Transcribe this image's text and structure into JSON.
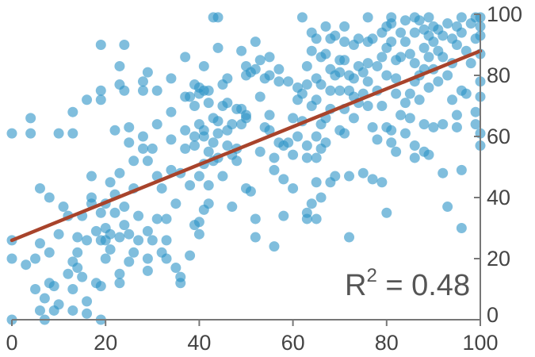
{
  "chart_data": {
    "type": "scatter",
    "title": "",
    "xlabel": "",
    "ylabel": "",
    "xlim": [
      0,
      100
    ],
    "ylim": [
      0,
      100
    ],
    "x_ticks": [
      "0",
      "20",
      "40",
      "60",
      "80",
      "100"
    ],
    "y_ticks": [
      "0",
      "20",
      "40",
      "60",
      "80",
      "100"
    ],
    "y_axis_side": "right",
    "grid": false,
    "colors": {
      "points": "#2b93c6",
      "fit_line": "#a8432b",
      "axis": "#777777"
    },
    "annotation": {
      "base": "R",
      "sup": "2",
      "rest": " = 0.48"
    },
    "fit_line": {
      "x": [
        0,
        100
      ],
      "y": [
        26,
        88
      ]
    },
    "points": [
      {
        "x": 0,
        "y": 61
      },
      {
        "x": 0,
        "y": 26
      },
      {
        "x": 0,
        "y": 20
      },
      {
        "x": 0,
        "y": 0
      },
      {
        "x": 3,
        "y": 18
      },
      {
        "x": 4,
        "y": 66
      },
      {
        "x": 4,
        "y": 61
      },
      {
        "x": 5,
        "y": 20
      },
      {
        "x": 5,
        "y": 10
      },
      {
        "x": 6,
        "y": 43
      },
      {
        "x": 6,
        "y": 25
      },
      {
        "x": 6,
        "y": 3
      },
      {
        "x": 7,
        "y": 7
      },
      {
        "x": 7,
        "y": 0
      },
      {
        "x": 8,
        "y": 40
      },
      {
        "x": 8,
        "y": 22
      },
      {
        "x": 8,
        "y": 12
      },
      {
        "x": 9,
        "y": 3
      },
      {
        "x": 9,
        "y": 11
      },
      {
        "x": 10,
        "y": 61
      },
      {
        "x": 10,
        "y": 28
      },
      {
        "x": 10,
        "y": 5
      },
      {
        "x": 11,
        "y": 37
      },
      {
        "x": 12,
        "y": 34
      },
      {
        "x": 13,
        "y": 19
      },
      {
        "x": 13,
        "y": 3
      },
      {
        "x": 12,
        "y": 15
      },
      {
        "x": 13,
        "y": 68
      },
      {
        "x": 13,
        "y": 61
      },
      {
        "x": 13,
        "y": 10
      },
      {
        "x": 14,
        "y": 22
      },
      {
        "x": 14,
        "y": 17
      },
      {
        "x": 14,
        "y": 27
      },
      {
        "x": 15,
        "y": 34
      },
      {
        "x": 15,
        "y": 14
      },
      {
        "x": 16,
        "y": 72
      },
      {
        "x": 16,
        "y": 26
      },
      {
        "x": 16,
        "y": 6
      },
      {
        "x": 16,
        "y": 2
      },
      {
        "x": 17,
        "y": 47
      },
      {
        "x": 17,
        "y": 40
      },
      {
        "x": 17,
        "y": 38
      },
      {
        "x": 18,
        "y": 12
      },
      {
        "x": 18,
        "y": 29
      },
      {
        "x": 19,
        "y": 0
      },
      {
        "x": 19,
        "y": 35
      },
      {
        "x": 19,
        "y": 26
      },
      {
        "x": 19,
        "y": 11
      },
      {
        "x": 19,
        "y": 90
      },
      {
        "x": 19,
        "y": 75
      },
      {
        "x": 19,
        "y": 72
      },
      {
        "x": 20,
        "y": 38
      },
      {
        "x": 20,
        "y": 30
      },
      {
        "x": 20,
        "y": 26
      },
      {
        "x": 20,
        "y": 20
      },
      {
        "x": 21,
        "y": 45
      },
      {
        "x": 21,
        "y": 28
      },
      {
        "x": 21,
        "y": 23
      },
      {
        "x": 22,
        "y": 62
      },
      {
        "x": 22,
        "y": 41
      },
      {
        "x": 22,
        "y": 35
      },
      {
        "x": 23,
        "y": 48
      },
      {
        "x": 23,
        "y": 27
      },
      {
        "x": 23,
        "y": 15
      },
      {
        "x": 23,
        "y": 12
      },
      {
        "x": 23,
        "y": 83
      },
      {
        "x": 23,
        "y": 77
      },
      {
        "x": 24,
        "y": 90
      },
      {
        "x": 24,
        "y": 75
      },
      {
        "x": 24,
        "y": 37
      },
      {
        "x": 24,
        "y": 31
      },
      {
        "x": 25,
        "y": 58
      },
      {
        "x": 25,
        "y": 63
      },
      {
        "x": 25,
        "y": 28
      },
      {
        "x": 25,
        "y": 19
      },
      {
        "x": 26,
        "y": 52
      },
      {
        "x": 26,
        "y": 43
      },
      {
        "x": 26,
        "y": 22
      },
      {
        "x": 27,
        "y": 34
      },
      {
        "x": 27,
        "y": 26
      },
      {
        "x": 28,
        "y": 75
      },
      {
        "x": 28,
        "y": 78
      },
      {
        "x": 28,
        "y": 56
      },
      {
        "x": 29,
        "y": 81
      },
      {
        "x": 28,
        "y": 60
      },
      {
        "x": 29,
        "y": 52
      },
      {
        "x": 29,
        "y": 29
      },
      {
        "x": 29,
        "y": 20
      },
      {
        "x": 29,
        "y": 16
      },
      {
        "x": 30,
        "y": 56
      },
      {
        "x": 30,
        "y": 26
      },
      {
        "x": 31,
        "y": 75
      },
      {
        "x": 31,
        "y": 64
      },
      {
        "x": 31,
        "y": 47
      },
      {
        "x": 31,
        "y": 33
      },
      {
        "x": 32,
        "y": 43
      },
      {
        "x": 32,
        "y": 22
      },
      {
        "x": 33,
        "y": 33
      },
      {
        "x": 33,
        "y": 26
      },
      {
        "x": 33,
        "y": 20
      },
      {
        "x": 34,
        "y": 79
      },
      {
        "x": 34,
        "y": 68
      },
      {
        "x": 34,
        "y": 59
      },
      {
        "x": 34,
        "y": 49
      },
      {
        "x": 35,
        "y": 38
      },
      {
        "x": 35,
        "y": 17
      },
      {
        "x": 36,
        "y": 12
      },
      {
        "x": 36,
        "y": 14
      },
      {
        "x": 36,
        "y": 48
      },
      {
        "x": 37,
        "y": 86
      },
      {
        "x": 37,
        "y": 73
      },
      {
        "x": 37,
        "y": 62
      },
      {
        "x": 37,
        "y": 56
      },
      {
        "x": 38,
        "y": 44
      },
      {
        "x": 38,
        "y": 21
      },
      {
        "x": 38,
        "y": 73
      },
      {
        "x": 39,
        "y": 77
      },
      {
        "x": 39,
        "y": 70
      },
      {
        "x": 39,
        "y": 60
      },
      {
        "x": 39,
        "y": 57
      },
      {
        "x": 39,
        "y": 31
      },
      {
        "x": 40,
        "y": 76
      },
      {
        "x": 40,
        "y": 74
      },
      {
        "x": 40,
        "y": 64
      },
      {
        "x": 40,
        "y": 47
      },
      {
        "x": 40,
        "y": 32
      },
      {
        "x": 40,
        "y": 28
      },
      {
        "x": 41,
        "y": 83
      },
      {
        "x": 41,
        "y": 75
      },
      {
        "x": 41,
        "y": 62
      },
      {
        "x": 41,
        "y": 60
      },
      {
        "x": 41,
        "y": 51
      },
      {
        "x": 41,
        "y": 36
      },
      {
        "x": 42,
        "y": 75
      },
      {
        "x": 42,
        "y": 71
      },
      {
        "x": 42,
        "y": 55
      },
      {
        "x": 42,
        "y": 44
      },
      {
        "x": 42,
        "y": 38
      },
      {
        "x": 43,
        "y": 99
      },
      {
        "x": 43,
        "y": 66
      },
      {
        "x": 43,
        "y": 58
      },
      {
        "x": 43,
        "y": 52
      },
      {
        "x": 44,
        "y": 99
      },
      {
        "x": 44,
        "y": 89
      },
      {
        "x": 44,
        "y": 65
      },
      {
        "x": 44,
        "y": 61
      },
      {
        "x": 44,
        "y": 53
      },
      {
        "x": 45,
        "y": 77
      },
      {
        "x": 45,
        "y": 70
      },
      {
        "x": 45,
        "y": 47
      },
      {
        "x": 46,
        "y": 79
      },
      {
        "x": 46,
        "y": 71
      },
      {
        "x": 46,
        "y": 62
      },
      {
        "x": 46,
        "y": 57
      },
      {
        "x": 47,
        "y": 64
      },
      {
        "x": 47,
        "y": 54
      },
      {
        "x": 47,
        "y": 37
      },
      {
        "x": 48,
        "y": 69
      },
      {
        "x": 48,
        "y": 56
      },
      {
        "x": 48,
        "y": 52
      },
      {
        "x": 49,
        "y": 88
      },
      {
        "x": 49,
        "y": 69
      },
      {
        "x": 49,
        "y": 64
      },
      {
        "x": 50,
        "y": 83
      },
      {
        "x": 50,
        "y": 80
      },
      {
        "x": 50,
        "y": 66
      },
      {
        "x": 50,
        "y": 43
      },
      {
        "x": 50,
        "y": 67
      },
      {
        "x": 51,
        "y": 81
      },
      {
        "x": 51,
        "y": 42
      },
      {
        "x": 52,
        "y": 91
      },
      {
        "x": 52,
        "y": 82
      },
      {
        "x": 52,
        "y": 33
      },
      {
        "x": 52,
        "y": 27
      },
      {
        "x": 53,
        "y": 85
      },
      {
        "x": 53,
        "y": 73
      },
      {
        "x": 53,
        "y": 55
      },
      {
        "x": 54,
        "y": 79
      },
      {
        "x": 54,
        "y": 63
      },
      {
        "x": 55,
        "y": 86
      },
      {
        "x": 55,
        "y": 80
      },
      {
        "x": 55,
        "y": 67
      },
      {
        "x": 55,
        "y": 62
      },
      {
        "x": 56,
        "y": 53
      },
      {
        "x": 56,
        "y": 49
      },
      {
        "x": 56,
        "y": 24
      },
      {
        "x": 57,
        "y": 82
      },
      {
        "x": 57,
        "y": 78
      },
      {
        "x": 57,
        "y": 58
      },
      {
        "x": 58,
        "y": 57
      },
      {
        "x": 58,
        "y": 46
      },
      {
        "x": 58,
        "y": 34
      },
      {
        "x": 59,
        "y": 78
      },
      {
        "x": 59,
        "y": 58
      },
      {
        "x": 60,
        "y": 66
      },
      {
        "x": 60,
        "y": 54
      },
      {
        "x": 60,
        "y": 43
      },
      {
        "x": 61,
        "y": 76
      },
      {
        "x": 61,
        "y": 72
      },
      {
        "x": 61,
        "y": 60
      },
      {
        "x": 62,
        "y": 99
      },
      {
        "x": 62,
        "y": 74
      },
      {
        "x": 62,
        "y": 65
      },
      {
        "x": 63,
        "y": 83
      },
      {
        "x": 63,
        "y": 77
      },
      {
        "x": 63,
        "y": 57
      },
      {
        "x": 63,
        "y": 53
      },
      {
        "x": 63,
        "y": 35
      },
      {
        "x": 63,
        "y": 33
      },
      {
        "x": 64,
        "y": 94
      },
      {
        "x": 64,
        "y": 88
      },
      {
        "x": 64,
        "y": 70
      },
      {
        "x": 64,
        "y": 38
      },
      {
        "x": 65,
        "y": 92
      },
      {
        "x": 65,
        "y": 79
      },
      {
        "x": 65,
        "y": 72
      },
      {
        "x": 65,
        "y": 60
      },
      {
        "x": 65,
        "y": 53
      },
      {
        "x": 65,
        "y": 45
      },
      {
        "x": 65,
        "y": 33
      },
      {
        "x": 66,
        "y": 86
      },
      {
        "x": 66,
        "y": 77
      },
      {
        "x": 66,
        "y": 64
      },
      {
        "x": 66,
        "y": 56
      },
      {
        "x": 66,
        "y": 40
      },
      {
        "x": 67,
        "y": 96
      },
      {
        "x": 67,
        "y": 87
      },
      {
        "x": 67,
        "y": 66
      },
      {
        "x": 67,
        "y": 58
      },
      {
        "x": 68,
        "y": 92
      },
      {
        "x": 68,
        "y": 82
      },
      {
        "x": 68,
        "y": 75
      },
      {
        "x": 68,
        "y": 69
      },
      {
        "x": 68,
        "y": 45
      },
      {
        "x": 69,
        "y": 93
      },
      {
        "x": 69,
        "y": 80
      },
      {
        "x": 69,
        "y": 47
      },
      {
        "x": 70,
        "y": 85
      },
      {
        "x": 70,
        "y": 81
      },
      {
        "x": 70,
        "y": 75
      },
      {
        "x": 70,
        "y": 62
      },
      {
        "x": 71,
        "y": 96
      },
      {
        "x": 71,
        "y": 91
      },
      {
        "x": 71,
        "y": 85
      },
      {
        "x": 71,
        "y": 69
      },
      {
        "x": 71,
        "y": 61
      },
      {
        "x": 72,
        "y": 80
      },
      {
        "x": 72,
        "y": 75
      },
      {
        "x": 72,
        "y": 47
      },
      {
        "x": 72,
        "y": 27
      },
      {
        "x": 73,
        "y": 90
      },
      {
        "x": 73,
        "y": 79
      },
      {
        "x": 73,
        "y": 73
      },
      {
        "x": 73,
        "y": 66
      },
      {
        "x": 74,
        "y": 92
      },
      {
        "x": 74,
        "y": 83
      },
      {
        "x": 74,
        "y": 71
      },
      {
        "x": 75,
        "y": 81
      },
      {
        "x": 75,
        "y": 74
      },
      {
        "x": 75,
        "y": 48
      },
      {
        "x": 76,
        "y": 99
      },
      {
        "x": 76,
        "y": 91
      },
      {
        "x": 76,
        "y": 84
      },
      {
        "x": 76,
        "y": 78
      },
      {
        "x": 76,
        "y": 70
      },
      {
        "x": 77,
        "y": 92
      },
      {
        "x": 77,
        "y": 63
      },
      {
        "x": 77,
        "y": 46
      },
      {
        "x": 78,
        "y": 83
      },
      {
        "x": 78,
        "y": 75
      },
      {
        "x": 78,
        "y": 59
      },
      {
        "x": 79,
        "y": 94
      },
      {
        "x": 79,
        "y": 86
      },
      {
        "x": 79,
        "y": 70
      },
      {
        "x": 79,
        "y": 45
      },
      {
        "x": 80,
        "y": 96
      },
      {
        "x": 80,
        "y": 89
      },
      {
        "x": 80,
        "y": 80
      },
      {
        "x": 80,
        "y": 63
      },
      {
        "x": 80,
        "y": 35
      },
      {
        "x": 81,
        "y": 99
      },
      {
        "x": 81,
        "y": 97
      },
      {
        "x": 81,
        "y": 91
      },
      {
        "x": 81,
        "y": 62
      },
      {
        "x": 81,
        "y": 58
      },
      {
        "x": 82,
        "y": 85
      },
      {
        "x": 82,
        "y": 79
      },
      {
        "x": 82,
        "y": 74
      },
      {
        "x": 82,
        "y": 55
      },
      {
        "x": 83,
        "y": 94
      },
      {
        "x": 83,
        "y": 86
      },
      {
        "x": 83,
        "y": 67
      },
      {
        "x": 84,
        "y": 98
      },
      {
        "x": 84,
        "y": 91
      },
      {
        "x": 84,
        "y": 71
      },
      {
        "x": 84,
        "y": 61
      },
      {
        "x": 85,
        "y": 87
      },
      {
        "x": 85,
        "y": 74
      },
      {
        "x": 85,
        "y": 66
      },
      {
        "x": 86,
        "y": 99
      },
      {
        "x": 86,
        "y": 94
      },
      {
        "x": 86,
        "y": 84
      },
      {
        "x": 86,
        "y": 78
      },
      {
        "x": 86,
        "y": 57
      },
      {
        "x": 86,
        "y": 53
      },
      {
        "x": 87,
        "y": 98
      },
      {
        "x": 87,
        "y": 80
      },
      {
        "x": 87,
        "y": 72
      },
      {
        "x": 88,
        "y": 95
      },
      {
        "x": 88,
        "y": 89
      },
      {
        "x": 88,
        "y": 82
      },
      {
        "x": 88,
        "y": 64
      },
      {
        "x": 88,
        "y": 55
      },
      {
        "x": 89,
        "y": 99
      },
      {
        "x": 89,
        "y": 93
      },
      {
        "x": 89,
        "y": 86
      },
      {
        "x": 89,
        "y": 76
      },
      {
        "x": 89,
        "y": 54
      },
      {
        "x": 90,
        "y": 96
      },
      {
        "x": 90,
        "y": 91
      },
      {
        "x": 90,
        "y": 82
      },
      {
        "x": 90,
        "y": 63
      },
      {
        "x": 91,
        "y": 95
      },
      {
        "x": 91,
        "y": 88
      },
      {
        "x": 91,
        "y": 78
      },
      {
        "x": 92,
        "y": 93
      },
      {
        "x": 92,
        "y": 86
      },
      {
        "x": 92,
        "y": 64
      },
      {
        "x": 92,
        "y": 48
      },
      {
        "x": 93,
        "y": 97
      },
      {
        "x": 93,
        "y": 80
      },
      {
        "x": 93,
        "y": 37
      },
      {
        "x": 94,
        "y": 92
      },
      {
        "x": 94,
        "y": 84
      },
      {
        "x": 94,
        "y": 72
      },
      {
        "x": 95,
        "y": 96
      },
      {
        "x": 95,
        "y": 90
      },
      {
        "x": 95,
        "y": 67
      },
      {
        "x": 95,
        "y": 63
      },
      {
        "x": 96,
        "y": 99
      },
      {
        "x": 96,
        "y": 94
      },
      {
        "x": 96,
        "y": 75
      },
      {
        "x": 96,
        "y": 49
      },
      {
        "x": 96,
        "y": 30
      },
      {
        "x": 97,
        "y": 88
      },
      {
        "x": 97,
        "y": 74
      },
      {
        "x": 98,
        "y": 97
      },
      {
        "x": 98,
        "y": 84
      },
      {
        "x": 99,
        "y": 99
      },
      {
        "x": 99,
        "y": 92
      },
      {
        "x": 99,
        "y": 68
      },
      {
        "x": 99,
        "y": 64
      },
      {
        "x": 100,
        "y": 99
      },
      {
        "x": 100,
        "y": 96
      },
      {
        "x": 100,
        "y": 93
      },
      {
        "x": 100,
        "y": 87
      },
      {
        "x": 100,
        "y": 78
      },
      {
        "x": 100,
        "y": 73
      },
      {
        "x": 100,
        "y": 61
      },
      {
        "x": 100,
        "y": 57
      }
    ]
  }
}
